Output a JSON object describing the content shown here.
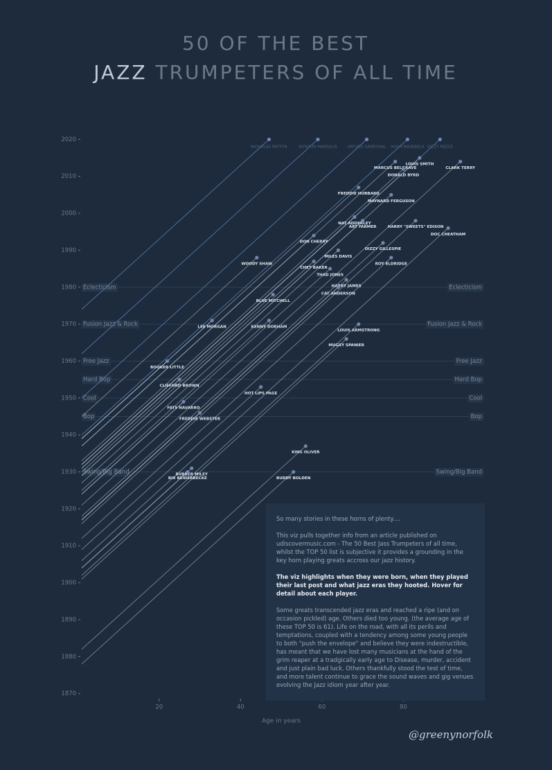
{
  "chart_data": {
    "type": "line",
    "title": "50 OF THE BEST",
    "title_highlight": "JAZZ",
    "title_rest": "TRUMPETERS OF ALL TIME",
    "x_label": "Age in years",
    "xlim": [
      1,
      100
    ],
    "xticks": [
      20,
      40,
      60,
      80
    ],
    "ylim": [
      1869,
      2021
    ],
    "yticks": [
      1870,
      1880,
      1890,
      1900,
      1910,
      1920,
      1930,
      1940,
      1950,
      1960,
      1970,
      1980,
      1990,
      2000,
      2010,
      2020
    ],
    "living_color": "#5b86bd",
    "passed_color": "#b9c4d3",
    "dot_color": "#7189ab",
    "eras": [
      {
        "name": "Swing/Big Band",
        "year": 1930
      },
      {
        "name": "Bop",
        "year": 1945
      },
      {
        "name": "Cool",
        "year": 1950
      },
      {
        "name": "Hard Bop",
        "year": 1955
      },
      {
        "name": "Free Jazz",
        "year": 1960
      },
      {
        "name": "Fusion Jazz & Rock",
        "year": 1970
      },
      {
        "name": "Eclecticism",
        "year": 1980
      }
    ],
    "players": [
      {
        "name": "NICHOLAS PAYTON",
        "born": 1973,
        "year": 2020,
        "age": 47,
        "living": true
      },
      {
        "name": "WYNTON MARSALIS",
        "born": 1961,
        "year": 2020,
        "age": 59,
        "living": true
      },
      {
        "name": "ARTURO SANDOVAL",
        "born": 1949,
        "year": 2020,
        "age": 71,
        "living": true
      },
      {
        "name": "HUGH MASEKELA",
        "born": 1939,
        "year": 2020,
        "age": 81,
        "living": true
      },
      {
        "name": "DIZZY REECE",
        "born": 1931,
        "year": 2020,
        "age": 89,
        "living": true
      },
      {
        "name": "CLARK TERRY",
        "born": 1920,
        "year": 2014,
        "age": 94,
        "living": false
      },
      {
        "name": "LOUIS SMITH",
        "born": 1931,
        "year": 2015,
        "age": 84,
        "living": false
      },
      {
        "name": "MARCUS BELGRAVE",
        "born": 1936,
        "year": 2014,
        "age": 78,
        "living": false
      },
      {
        "name": "DONALD BYRD",
        "born": 1932,
        "year": 2012,
        "age": 80,
        "living": false
      },
      {
        "name": "FREDDIE HUBBARD",
        "born": 1938,
        "year": 2007,
        "age": 69,
        "living": false
      },
      {
        "name": "MAYNARD FERGUSON",
        "born": 1928,
        "year": 2005,
        "age": 77,
        "living": false
      },
      {
        "name": "NAT ADDERLEY",
        "born": 1931,
        "year": 1999,
        "age": 68,
        "living": false
      },
      {
        "name": "ART FARMER",
        "born": 1928,
        "year": 1998,
        "age": 70,
        "living": false
      },
      {
        "name": "HARRY \"SWEETS\" EDISON",
        "born": 1915,
        "year": 1998,
        "age": 83,
        "living": false
      },
      {
        "name": "DOC CHEATHAM",
        "born": 1905,
        "year": 1996,
        "age": 91,
        "living": false
      },
      {
        "name": "DON CHERRY",
        "born": 1936,
        "year": 1994,
        "age": 58,
        "living": false
      },
      {
        "name": "DIZZY GILLESPIE",
        "born": 1917,
        "year": 1992,
        "age": 75,
        "living": false
      },
      {
        "name": "MILES DAVIS",
        "born": 1926,
        "year": 1990,
        "age": 64,
        "living": false
      },
      {
        "name": "ROY ELDRIDGE",
        "born": 1911,
        "year": 1988,
        "age": 77,
        "living": false
      },
      {
        "name": "WOODY SHAW",
        "born": 1944,
        "year": 1988,
        "age": 44,
        "living": false
      },
      {
        "name": "CHET BAKER",
        "born": 1929,
        "year": 1987,
        "age": 58,
        "living": false
      },
      {
        "name": "THAD JONES",
        "born": 1923,
        "year": 1985,
        "age": 62,
        "living": false
      },
      {
        "name": "HARRY JAMES",
        "born": 1916,
        "year": 1982,
        "age": 66,
        "living": false
      },
      {
        "name": "CAT ANDERSON",
        "born": 1916,
        "year": 1980,
        "age": 64,
        "living": false
      },
      {
        "name": "BLUE MITCHELL",
        "born": 1930,
        "year": 1978,
        "age": 48,
        "living": false
      },
      {
        "name": "LEE MORGAN",
        "born": 1938,
        "year": 1971,
        "age": 33,
        "living": false
      },
      {
        "name": "KENNY DORHAM",
        "born": 1924,
        "year": 1971,
        "age": 47,
        "living": false
      },
      {
        "name": "LOUIS ARMSTRONG",
        "born": 1901,
        "year": 1970,
        "age": 69,
        "living": false
      },
      {
        "name": "MUGSY SPANIER",
        "born": 1900,
        "year": 1966,
        "age": 66,
        "living": false
      },
      {
        "name": "BOOKER LITTLE",
        "born": 1938,
        "year": 1960,
        "age": 22,
        "living": false
      },
      {
        "name": "CLIFFORD BROWN",
        "born": 1930,
        "year": 1955,
        "age": 25,
        "living": false
      },
      {
        "name": "HOT LIPS PAGE",
        "born": 1908,
        "year": 1953,
        "age": 45,
        "living": false
      },
      {
        "name": "FATS NAVARRO",
        "born": 1923,
        "year": 1949,
        "age": 26,
        "living": false
      },
      {
        "name": "FREDDIE WEBSTER",
        "born": 1916,
        "year": 1946,
        "age": 30,
        "living": false
      },
      {
        "name": "KING OLIVER",
        "born": 1881,
        "year": 1937,
        "age": 56,
        "living": false
      },
      {
        "name": "BUBBER MILEY",
        "born": 1903,
        "year": 1931,
        "age": 28,
        "living": false
      },
      {
        "name": "BIX BEIDERBECKE",
        "born": 1903,
        "year": 1930,
        "age": 27,
        "living": false
      },
      {
        "name": "BUDDY BOLDEN",
        "born": 1877,
        "year": 1930,
        "age": 53,
        "living": false
      }
    ]
  },
  "notes": [
    "So many stories in these horns of plenty....",
    "This viz pulls together info from an article published on udiscovermusic.com - The 50 Best Jass Trumpeters of all time, whilst the TOP 50 list is subjective it provides a grounding in the key horn playing greats accross our jazz history.",
    "The viz highlights when they were born, when they played their last post and what jazz eras they hooted. Hover for detail about each player.",
    "Some greats transcended jazz eras and reached a ripe (and on occasion pickled) age. Others died too young. (the average age of these TOP 50 is 61). Life on the road, with all its perils and temptations, coupled with a tendency among some young people to both \"push the envelope\" and believe they were indestructible, has meant that we have lost many musicians at the hand of the grim reaper at a tradgically early age to Disease, murder, accident and just plain bad luck. Others thankfully stood the test of time, and more talent continue to grace the sound waves and gig venues evolving the Jazz idiom year after year."
  ],
  "signature": "@greenynorfolk"
}
